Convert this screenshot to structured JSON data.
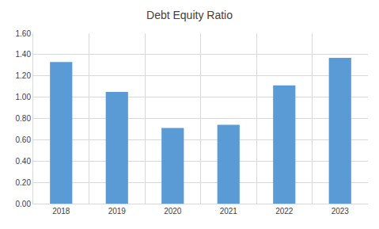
{
  "chart_data": {
    "type": "bar",
    "title": "Debt Equity Ratio",
    "categories": [
      "2018",
      "2019",
      "2020",
      "2021",
      "2022",
      "2023"
    ],
    "values": [
      1.33,
      1.05,
      0.71,
      0.74,
      1.11,
      1.37
    ],
    "color": "#5b9bd5",
    "ylim": [
      0,
      1.6
    ],
    "yticks": [
      {
        "value": 0,
        "label": "0.00"
      },
      {
        "value": 0.2,
        "label": "0.20"
      },
      {
        "value": 0.4,
        "label": "0.40"
      },
      {
        "value": 0.6,
        "label": "0.60"
      },
      {
        "value": 0.8,
        "label": "0.80"
      },
      {
        "value": 1.0,
        "label": "1.00"
      },
      {
        "value": 1.2,
        "label": "1.20"
      },
      {
        "value": 1.4,
        "label": "1.40"
      },
      {
        "value": 1.6,
        "label": "1.60"
      }
    ],
    "grid": true
  }
}
